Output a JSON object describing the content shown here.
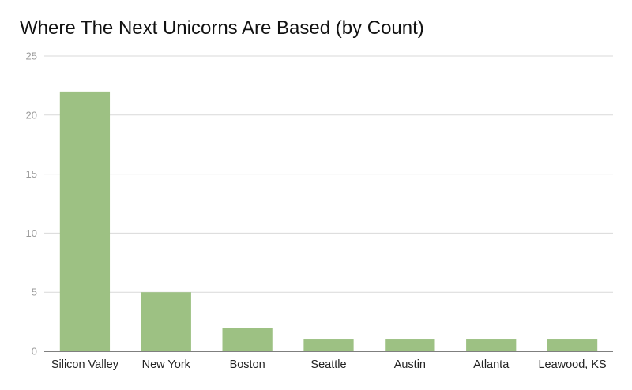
{
  "chart_data": {
    "type": "bar",
    "title": "Where The Next Unicorns Are Based (by Count)",
    "categories": [
      "Silicon Valley",
      "New York",
      "Boston",
      "Seattle",
      "Austin",
      "Atlanta",
      "Leawood, KS"
    ],
    "values": [
      22,
      5,
      2,
      1,
      1,
      1,
      1
    ],
    "ylim": [
      0,
      25
    ],
    "yticks": [
      0,
      5,
      10,
      15,
      20,
      25
    ],
    "xlabel": "",
    "ylabel": "",
    "grid": true,
    "legend": "none",
    "bar_color": "#9dc183",
    "gridline_color": "#d9d9d9",
    "axis_color": "#333333"
  }
}
